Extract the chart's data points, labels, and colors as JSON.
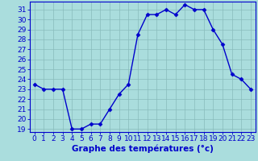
{
  "hours": [
    0,
    1,
    2,
    3,
    4,
    5,
    6,
    7,
    8,
    9,
    10,
    11,
    12,
    13,
    14,
    15,
    16,
    17,
    18,
    19,
    20,
    21,
    22,
    23
  ],
  "temperatures": [
    23.5,
    23.0,
    23.0,
    23.0,
    19.0,
    19.0,
    19.5,
    19.5,
    21.0,
    22.5,
    23.5,
    28.5,
    30.5,
    30.5,
    31.0,
    30.5,
    31.5,
    31.0,
    31.0,
    29.0,
    27.5,
    24.5,
    24.0,
    23.0
  ],
  "line_color": "#0000cc",
  "marker": "D",
  "marker_size": 2.5,
  "bg_color": "#aadddd",
  "grid_color": "#88bbbb",
  "xlabel": "Graphe des températures (°c)",
  "ylim_min": 18.7,
  "ylim_max": 31.8,
  "yticks": [
    19,
    20,
    21,
    22,
    23,
    24,
    25,
    26,
    27,
    28,
    29,
    30,
    31
  ],
  "xticks": [
    0,
    1,
    2,
    3,
    4,
    5,
    6,
    7,
    8,
    9,
    10,
    11,
    12,
    13,
    14,
    15,
    16,
    17,
    18,
    19,
    20,
    21,
    22,
    23
  ],
  "axis_color": "#0000cc",
  "tick_label_color": "#0000cc",
  "xlabel_color": "#0000cc",
  "xlabel_fontsize": 7.5,
  "tick_fontsize": 6.5,
  "linewidth": 1.0
}
